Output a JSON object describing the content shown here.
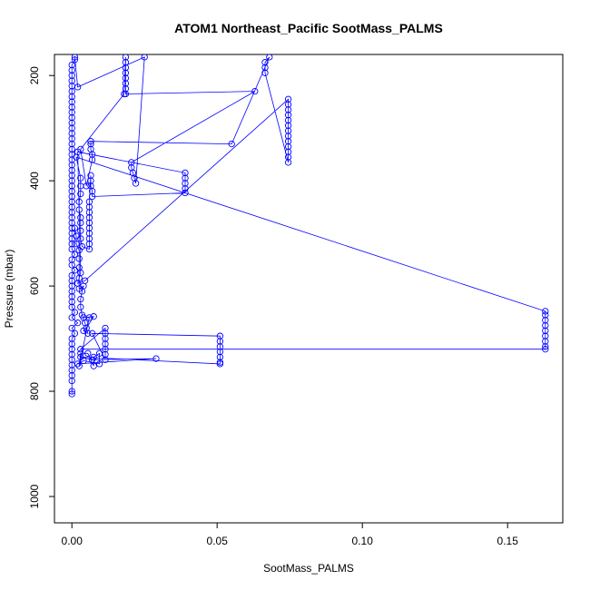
{
  "chart_data": {
    "type": "scatter",
    "title": "ATOM1 Northeast_Pacific SootMass_PALMS",
    "xlabel": "SootMass_PALMS",
    "ylabel": "Pressure (mbar)",
    "xlim": [
      -0.006,
      0.169
    ],
    "ylim": [
      1050,
      160
    ],
    "y_reversed": true,
    "x_ticks": [
      0.0,
      0.05,
      0.1,
      0.15
    ],
    "x_tick_labels": [
      "0.00",
      "0.05",
      "0.10",
      "0.15"
    ],
    "y_ticks": [
      200,
      400,
      600,
      800,
      1000
    ],
    "y_tick_labels": [
      "200",
      "400",
      "600",
      "800",
      "1000"
    ],
    "grid": false,
    "marker": "open-circle",
    "connected_with_lines": true,
    "color": "#0000ff",
    "series": [
      {
        "points": [
          [
            0.0,
            805
          ],
          [
            0.0,
            800
          ],
          [
            0.0,
            780
          ],
          [
            0.0,
            770
          ],
          [
            0.0,
            760
          ],
          [
            0.0,
            750
          ],
          [
            0.0,
            740
          ],
          [
            0.0,
            730
          ],
          [
            0.0,
            720
          ],
          [
            0.0,
            710
          ],
          [
            0.0,
            700
          ],
          [
            0.001,
            690
          ],
          [
            0.0,
            680
          ],
          [
            0.002,
            670
          ],
          [
            0.0,
            660
          ],
          [
            0.001,
            650
          ],
          [
            0.0,
            640
          ],
          [
            0.0,
            630
          ],
          [
            0.0,
            620
          ],
          [
            0.0,
            610
          ],
          [
            0.0,
            600
          ],
          [
            0.0,
            590
          ],
          [
            0.0,
            580
          ],
          [
            0.001,
            570
          ],
          [
            0.0,
            560
          ],
          [
            0.0,
            550
          ],
          [
            0.001,
            540
          ],
          [
            0.0,
            530
          ],
          [
            0.0,
            520
          ],
          [
            0.0,
            510
          ],
          [
            0.0,
            500
          ],
          [
            0.0,
            490
          ],
          [
            0.0,
            480
          ],
          [
            0.0,
            470
          ],
          [
            0.0,
            460
          ],
          [
            0.0,
            450
          ],
          [
            0.0,
            440
          ],
          [
            0.0,
            430
          ],
          [
            0.0,
            420
          ],
          [
            0.0,
            410
          ],
          [
            0.0,
            400
          ],
          [
            0.0,
            390
          ],
          [
            0.0,
            380
          ],
          [
            0.0,
            370
          ],
          [
            0.0,
            360
          ],
          [
            0.0,
            350
          ],
          [
            0.0,
            340
          ],
          [
            0.0,
            330
          ],
          [
            0.0,
            320
          ],
          [
            0.0,
            310
          ],
          [
            0.0,
            300
          ],
          [
            0.0,
            290
          ],
          [
            0.0,
            280
          ],
          [
            0.0,
            270
          ],
          [
            0.0,
            260
          ],
          [
            0.0,
            250
          ],
          [
            0.0,
            240
          ],
          [
            0.0,
            230
          ],
          [
            0.0,
            220
          ],
          [
            0.0,
            210
          ],
          [
            0.0,
            200
          ],
          [
            0.0,
            190
          ],
          [
            0.0,
            180
          ],
          [
            0.001,
            170
          ],
          [
            0.001,
            165
          ],
          [
            0.002,
            222
          ],
          [
            0.025,
            165
          ],
          [
            0.022,
            405
          ],
          [
            0.0215,
            395
          ],
          [
            0.021,
            385
          ],
          [
            0.0205,
            375
          ],
          [
            0.0205,
            365
          ],
          [
            0.063,
            230
          ],
          [
            0.0185,
            235
          ],
          [
            0.0185,
            225
          ],
          [
            0.0185,
            215
          ],
          [
            0.0185,
            205
          ],
          [
            0.0185,
            195
          ],
          [
            0.0185,
            185
          ],
          [
            0.0185,
            175
          ],
          [
            0.0185,
            165
          ],
          [
            0.018,
            235
          ],
          [
            0.003,
            340
          ],
          [
            0.005,
            410
          ],
          [
            0.007,
            360
          ],
          [
            0.007,
            350
          ],
          [
            0.0065,
            340
          ],
          [
            0.0065,
            330
          ],
          [
            0.0065,
            325
          ],
          [
            0.055,
            330
          ],
          [
            0.068,
            165
          ],
          [
            0.0665,
            175
          ],
          [
            0.0665,
            185
          ],
          [
            0.0665,
            195
          ],
          [
            0.0745,
            365
          ],
          [
            0.0745,
            355
          ],
          [
            0.0745,
            345
          ],
          [
            0.0745,
            335
          ],
          [
            0.0745,
            325
          ],
          [
            0.0745,
            315
          ],
          [
            0.0745,
            305
          ],
          [
            0.0745,
            295
          ],
          [
            0.0745,
            285
          ],
          [
            0.0745,
            275
          ],
          [
            0.0745,
            265
          ],
          [
            0.0745,
            255
          ],
          [
            0.0745,
            245
          ],
          [
            0.0045,
            590
          ],
          [
            0.002,
            595
          ],
          [
            0.003,
            575
          ],
          [
            0.002,
            345
          ],
          [
            0.039,
            385
          ],
          [
            0.039,
            395
          ],
          [
            0.039,
            405
          ],
          [
            0.039,
            415
          ],
          [
            0.039,
            423
          ],
          [
            0.007,
            430
          ],
          [
            0.007,
            420
          ],
          [
            0.0065,
            410
          ],
          [
            0.0065,
            400
          ],
          [
            0.0065,
            390
          ],
          [
            0.006,
            440
          ],
          [
            0.006,
            450
          ],
          [
            0.006,
            460
          ],
          [
            0.006,
            470
          ],
          [
            0.006,
            480
          ],
          [
            0.006,
            490
          ],
          [
            0.006,
            500
          ],
          [
            0.006,
            510
          ],
          [
            0.006,
            520
          ],
          [
            0.006,
            530
          ],
          [
            0.0035,
            525
          ],
          [
            0.003,
            510
          ],
          [
            0.003,
            495
          ],
          [
            0.003,
            480
          ],
          [
            0.003,
            470
          ],
          [
            0.0025,
            455
          ],
          [
            0.0025,
            440
          ],
          [
            0.003,
            425
          ],
          [
            0.003,
            410
          ],
          [
            0.003,
            395
          ],
          [
            0.0015,
            355
          ],
          [
            0.163,
            648
          ],
          [
            0.163,
            655
          ],
          [
            0.163,
            665
          ],
          [
            0.163,
            675
          ],
          [
            0.163,
            685
          ],
          [
            0.163,
            695
          ],
          [
            0.163,
            705
          ],
          [
            0.163,
            715
          ],
          [
            0.163,
            720
          ],
          [
            0.003,
            720
          ],
          [
            0.0115,
            680
          ],
          [
            0.0115,
            690
          ],
          [
            0.0115,
            700
          ],
          [
            0.0115,
            710
          ],
          [
            0.0115,
            720
          ],
          [
            0.0115,
            730
          ],
          [
            0.0115,
            740
          ],
          [
            0.007,
            690
          ],
          [
            0.051,
            695
          ],
          [
            0.051,
            705
          ],
          [
            0.051,
            715
          ],
          [
            0.051,
            725
          ],
          [
            0.051,
            735
          ],
          [
            0.051,
            745
          ],
          [
            0.051,
            748
          ],
          [
            0.003,
            735
          ],
          [
            0.007,
            740
          ],
          [
            0.029,
            738
          ],
          [
            0.002,
            748
          ],
          [
            0.004,
            742
          ],
          [
            0.0095,
            748
          ],
          [
            0.0095,
            728
          ],
          [
            0.0075,
            735
          ],
          [
            0.0075,
            752
          ],
          [
            0.0055,
            728
          ],
          [
            0.003,
            728
          ],
          [
            0.0025,
            752
          ],
          [
            0.006,
            660
          ],
          [
            0.004,
            660
          ],
          [
            0.0075,
            658
          ],
          [
            0.005,
            680
          ],
          [
            0.004,
            685
          ],
          [
            0.0055,
            690
          ],
          [
            0.0045,
            670
          ],
          [
            0.0035,
            655
          ],
          [
            0.003,
            640
          ],
          [
            0.003,
            625
          ],
          [
            0.0035,
            610
          ],
          [
            0.004,
            600
          ],
          [
            0.0025,
            605
          ],
          [
            0.0025,
            585
          ],
          [
            0.0025,
            565
          ],
          [
            0.0025,
            548
          ],
          [
            0.0025,
            532
          ],
          [
            0.0015,
            520
          ],
          [
            0.0015,
            505
          ],
          [
            0.001,
            490
          ]
        ]
      }
    ]
  }
}
